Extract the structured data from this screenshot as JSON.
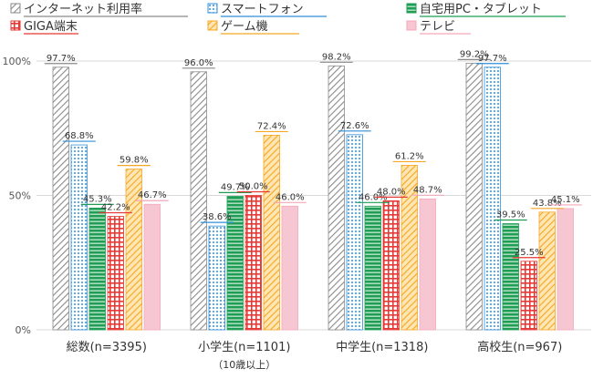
{
  "chart_data": {
    "type": "bar",
    "categories": [
      "総数(n=3395)",
      "小学生(n=1101)",
      "中学生(n=1318)",
      "高校生(n=967)"
    ],
    "category_notes": [
      "",
      "（10歳以上）",
      "",
      ""
    ],
    "ytick_labels": [
      "0%",
      "50%",
      "100%"
    ],
    "ylim": [
      0,
      100
    ],
    "legend_placement": "top",
    "series": [
      {
        "name": "インターネット利用率",
        "values": [
          97.7,
          96.0,
          98.2,
          99.2
        ],
        "labels": [
          "97.7%",
          "96.0%",
          "98.2%",
          "99.2%"
        ],
        "color": "#9e9e9e",
        "pattern": "diagonal-hatch"
      },
      {
        "name": "スマートフォン",
        "values": [
          68.8,
          38.6,
          72.6,
          97.7
        ],
        "labels": [
          "68.8%",
          "38.6%",
          "72.6%",
          "97.7%"
        ],
        "color": "#2f8fd8",
        "pattern": "dots"
      },
      {
        "name": "自宅用PC・タブレット",
        "values": [
          45.3,
          49.7,
          46.0,
          39.5
        ],
        "labels": [
          "45.3%",
          "49.7%",
          "46.0%",
          "39.5%"
        ],
        "color": "#1f9d55",
        "pattern": "horizontal-lines"
      },
      {
        "name": "GIGA端末",
        "values": [
          42.2,
          50.0,
          48.0,
          25.5
        ],
        "labels": [
          "42.2%",
          "50.0%",
          "48.0%",
          "25.5%"
        ],
        "color": "#e53935",
        "pattern": "grid"
      },
      {
        "name": "ゲーム機",
        "values": [
          59.8,
          72.4,
          61.2,
          43.8
        ],
        "labels": [
          "59.8%",
          "72.4%",
          "61.2%",
          "43.8%"
        ],
        "color": "#f5a623",
        "pattern": "diagonal-hatch"
      },
      {
        "name": "テレビ",
        "values": [
          46.7,
          46.0,
          48.7,
          45.1
        ],
        "labels": [
          "46.7%",
          "46.0%",
          "48.7%",
          "45.1%"
        ],
        "color": "#f4a7b9",
        "pattern": "solid"
      }
    ]
  }
}
